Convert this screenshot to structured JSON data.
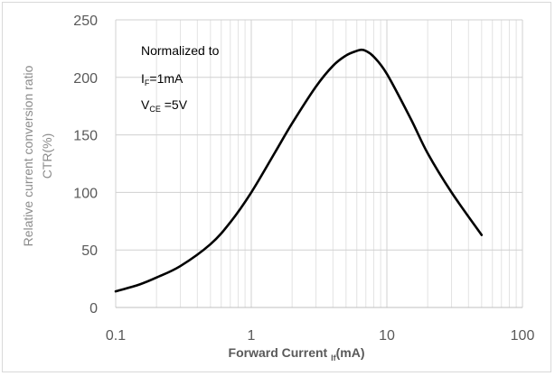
{
  "chart_data": {
    "type": "line",
    "title": "",
    "xlabel_main": "Forward Current ",
    "xlabel_sub": "If",
    "xlabel_unit": "(mA)",
    "ylabel_line1": "Relative current conversion ratio",
    "ylabel_line2": "CTR(%)",
    "xscale": "log",
    "xlim": [
      0.1,
      100
    ],
    "ylim": [
      0,
      250
    ],
    "xticks": [
      0.1,
      1,
      10,
      100
    ],
    "xtick_labels": [
      "0.1",
      "1",
      "10",
      "100"
    ],
    "yticks": [
      0,
      50,
      100,
      150,
      200,
      250
    ],
    "ytick_labels": [
      "0",
      "50",
      "100",
      "150",
      "200",
      "250"
    ],
    "grid": true,
    "annotation": {
      "line1": "Normalized to",
      "if_main": "I",
      "if_sub": "F",
      "if_value": "=1mA",
      "vce_main": "V",
      "vce_sub": "CE",
      "vce_value": " =5V"
    },
    "series": [
      {
        "color": "#000000",
        "x": [
          0.1,
          0.15,
          0.2,
          0.3,
          0.5,
          0.7,
          1,
          1.5,
          2,
          3,
          4,
          5,
          6,
          6.5,
          7,
          8,
          10,
          15,
          20,
          30,
          50
        ],
        "y": [
          14,
          20,
          26,
          36,
          55,
          74,
          100,
          135,
          160,
          192,
          210,
          219,
          223,
          224,
          223,
          218,
          203,
          164,
          134,
          100,
          63
        ]
      }
    ]
  }
}
